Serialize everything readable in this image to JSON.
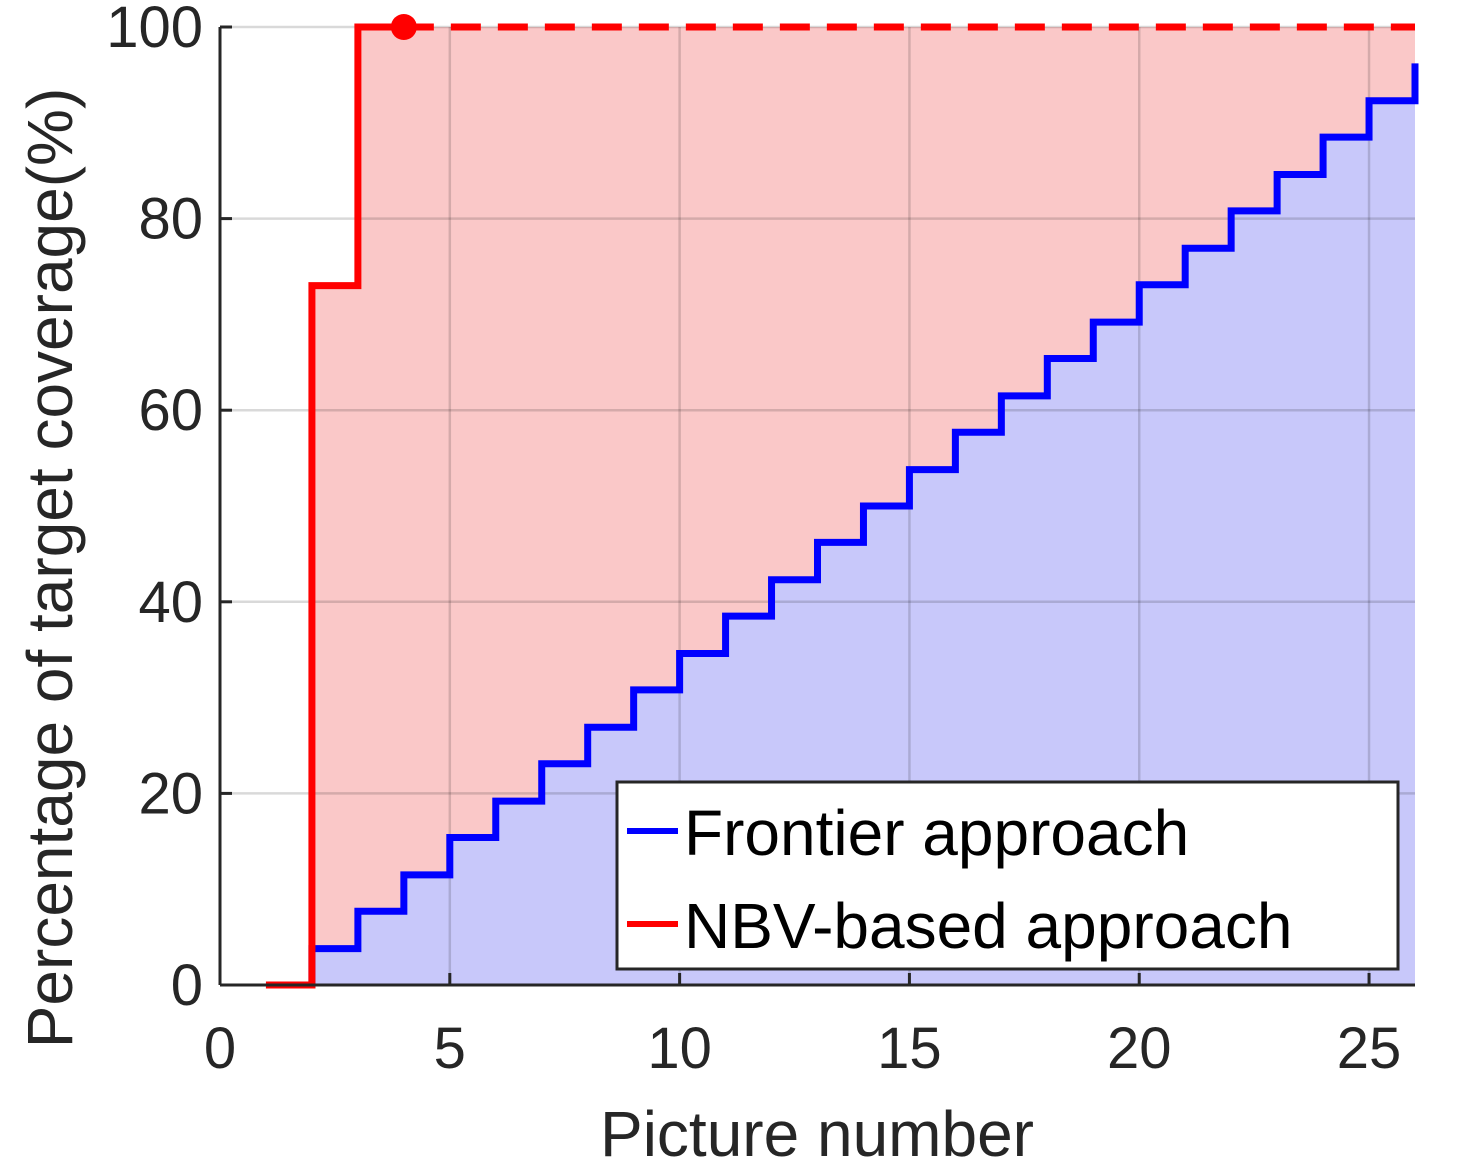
{
  "chart_data": {
    "type": "line",
    "step": true,
    "title": "",
    "xlabel": "Picture number",
    "ylabel": "Percentage of target coverage(%)",
    "xlim": [
      0,
      26
    ],
    "ylim": [
      0,
      100
    ],
    "xticks": [
      0,
      5,
      10,
      15,
      20,
      25
    ],
    "yticks": [
      0,
      20,
      40,
      60,
      80,
      100
    ],
    "grid": true,
    "legend_position": "bottom-right",
    "series": [
      {
        "name": "Frontier approach",
        "color": "#0000ff",
        "fill": "#c8c8fa",
        "style": "solid",
        "x": [
          1,
          2,
          3,
          4,
          5,
          6,
          7,
          8,
          9,
          10,
          11,
          12,
          13,
          14,
          15,
          16,
          17,
          18,
          19,
          20,
          21,
          22,
          23,
          24,
          25,
          26
        ],
        "y": [
          0,
          3.8,
          7.7,
          11.5,
          15.4,
          19.2,
          23.1,
          26.9,
          30.8,
          34.6,
          38.5,
          42.3,
          46.2,
          50.0,
          53.8,
          57.7,
          61.5,
          65.4,
          69.2,
          73.1,
          76.9,
          80.8,
          84.6,
          88.5,
          92.3,
          96.2
        ]
      },
      {
        "name": "NBV-based approach",
        "color": "#ff0000",
        "fill": "#fac8c8",
        "style": "solid",
        "x": [
          1,
          2,
          3,
          4
        ],
        "y": [
          0,
          73,
          100,
          100
        ],
        "marker_at": [
          4,
          100
        ],
        "extension": {
          "x": [
            4,
            26
          ],
          "y": [
            100,
            100
          ],
          "style": "dashed"
        }
      }
    ]
  }
}
